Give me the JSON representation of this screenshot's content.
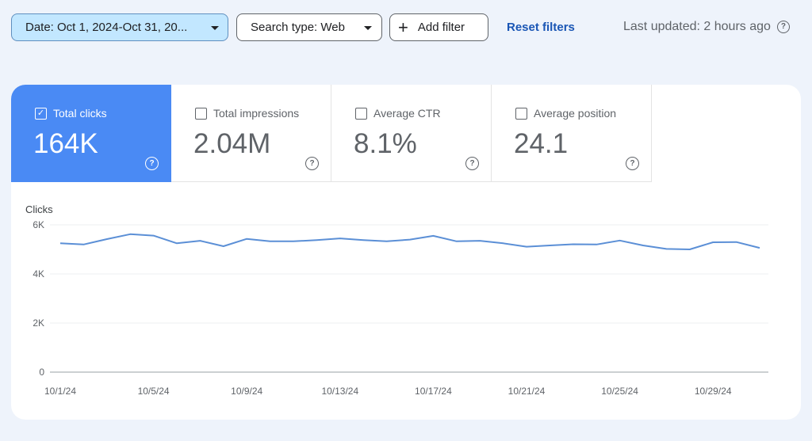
{
  "toolbar": {
    "date_filter": "Date: Oct 1, 2024-Oct 31, 20...",
    "search_type": "Search type: Web",
    "add_filter": "Add filter",
    "add_icon": "plus-icon",
    "reset": "Reset filters",
    "last_updated": "Last updated: 2 hours ago",
    "help_icon": "help-icon"
  },
  "metrics": [
    {
      "label": "Total clicks",
      "value": "164K",
      "checked": true
    },
    {
      "label": "Total impressions",
      "value": "2.04M",
      "checked": false
    },
    {
      "label": "Average CTR",
      "value": "8.1%",
      "checked": false
    },
    {
      "label": "Average position",
      "value": "24.1",
      "checked": false
    }
  ],
  "colors": {
    "accent": "#4a8af4",
    "line": "#5b8fd6",
    "date_chip_bg": "#c2e7ff",
    "link": "#1a56b5"
  },
  "chart_data": {
    "type": "line",
    "ylabel": "Clicks",
    "ylim": [
      0,
      6000
    ],
    "y_ticks": [
      0,
      2000,
      4000,
      6000
    ],
    "y_tick_labels": [
      "0",
      "2K",
      "4K",
      "6K"
    ],
    "x_tick_labels": [
      "10/1/24",
      "10/5/24",
      "10/9/24",
      "10/13/24",
      "10/17/24",
      "10/21/24",
      "10/25/24",
      "10/29/24"
    ],
    "x": [
      "10/1/24",
      "10/2/24",
      "10/3/24",
      "10/4/24",
      "10/5/24",
      "10/6/24",
      "10/7/24",
      "10/8/24",
      "10/9/24",
      "10/10/24",
      "10/11/24",
      "10/12/24",
      "10/13/24",
      "10/14/24",
      "10/15/24",
      "10/16/24",
      "10/17/24",
      "10/18/24",
      "10/19/24",
      "10/20/24",
      "10/21/24",
      "10/22/24",
      "10/23/24",
      "10/24/24",
      "10/25/24",
      "10/26/24",
      "10/27/24",
      "10/28/24",
      "10/29/24",
      "10/30/24",
      "10/31/24"
    ],
    "series": [
      {
        "values": [
          5250,
          5200,
          5420,
          5620,
          5560,
          5250,
          5350,
          5130,
          5430,
          5330,
          5330,
          5380,
          5450,
          5380,
          5330,
          5400,
          5550,
          5330,
          5350,
          5250,
          5110,
          5160,
          5210,
          5200,
          5360,
          5160,
          5020,
          5000,
          5290,
          5300,
          5060
        ]
      }
    ],
    "grid": true
  }
}
